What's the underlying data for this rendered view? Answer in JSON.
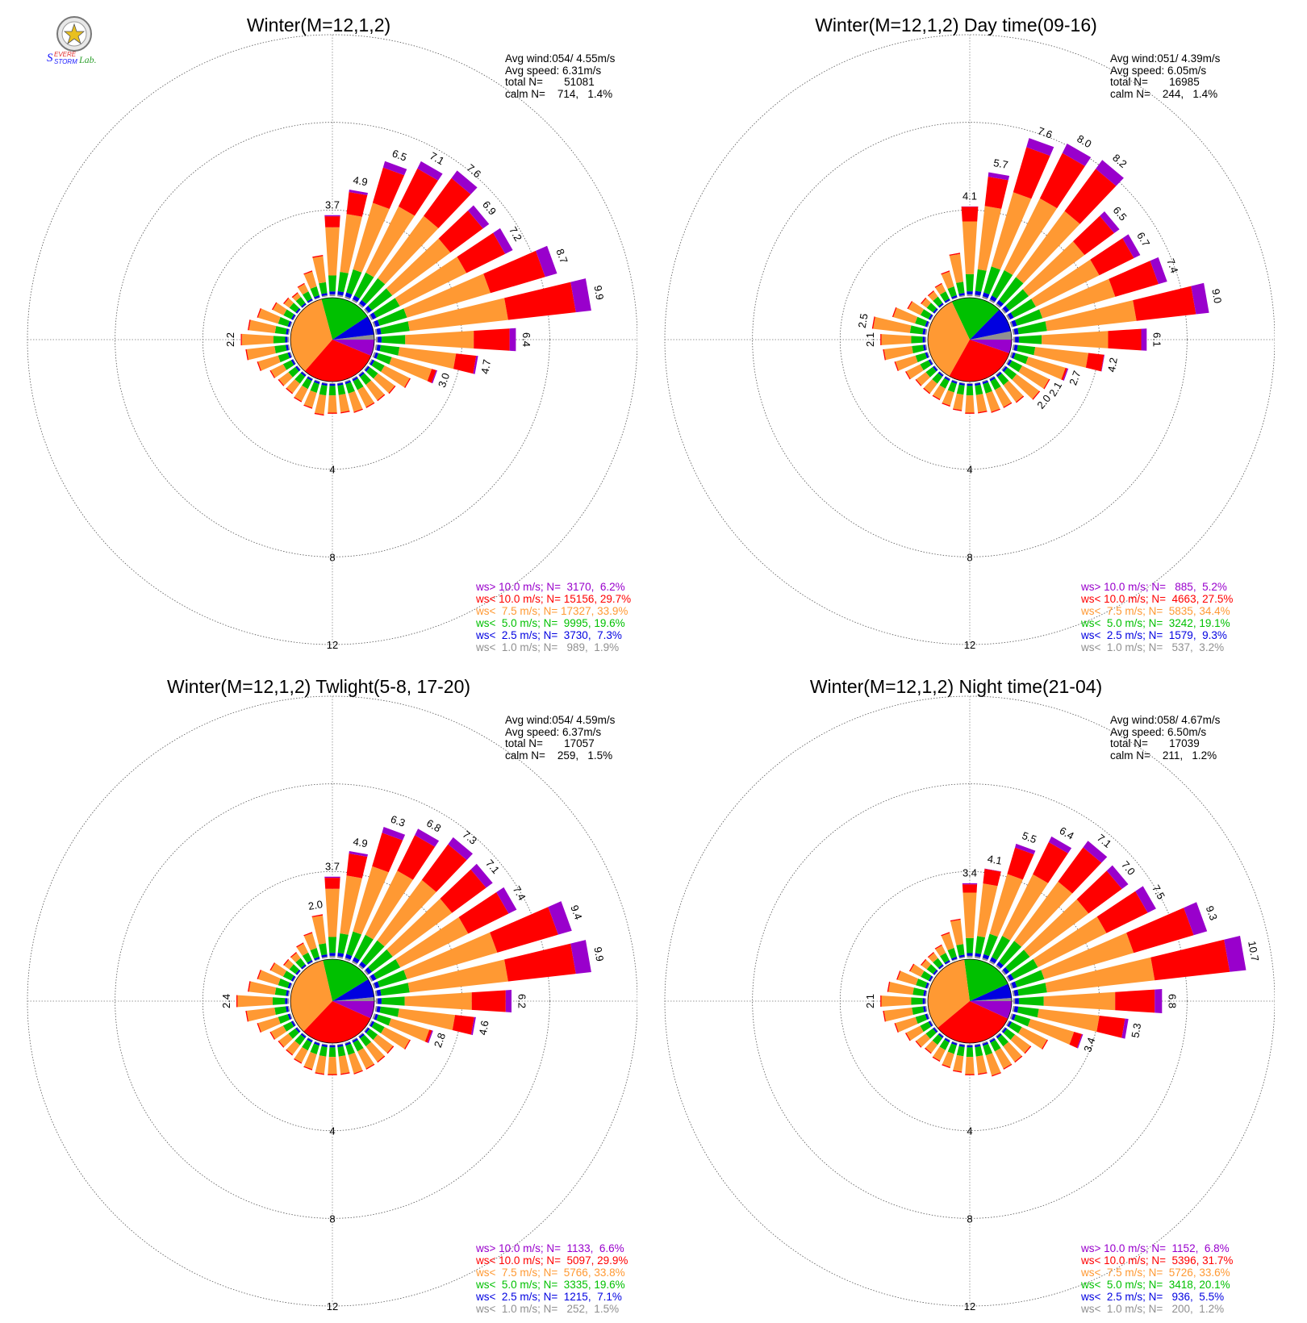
{
  "logo": {
    "text_parts": [
      "S",
      "EVERE",
      "STORM",
      "Lab."
    ],
    "colors": [
      "#1a1aff",
      "#e03030",
      "#1a1aff",
      "#30a030"
    ]
  },
  "speed_classes": [
    {
      "label": "ws<  1.0 m/s",
      "color": "#909090"
    },
    {
      "label": "ws<  2.5 m/s",
      "color": "#0000e0"
    },
    {
      "label": "ws<  5.0 m/s",
      "color": "#00c000"
    },
    {
      "label": "ws<  7.5 m/s",
      "color": "#ff9933"
    },
    {
      "label": "ws< 10.0 m/s",
      "color": "#ff0000"
    },
    {
      "label": "ws> 10.0 m/s",
      "color": "#9900cc"
    }
  ],
  "chart_data": [
    {
      "type": "wind-rose",
      "title": "Winter(M=12,1,2)",
      "stats": [
        "Avg wind:054/ 4.55m/s",
        "Avg speed: 6.31m/s",
        "total N=       51081",
        "calm N=    714,   1.4%"
      ],
      "radial_ticks": [
        "4",
        "8",
        "12"
      ],
      "radial_max": 12,
      "sector_count": 36,
      "directions_deg": [
        0,
        10,
        20,
        30,
        40,
        50,
        60,
        70,
        80,
        90,
        100,
        110,
        120,
        130,
        140,
        150,
        160,
        170,
        180,
        190,
        200,
        210,
        220,
        230,
        240,
        250,
        260,
        270,
        280,
        290,
        300,
        310,
        320,
        330,
        340,
        350
      ],
      "totals": [
        3.7,
        4.9,
        6.5,
        7.1,
        7.6,
        6.9,
        7.2,
        8.7,
        9.9,
        6.4,
        4.7,
        3.0,
        2.0,
        1.6,
        1.5,
        1.5,
        1.5,
        1.4,
        1.4,
        1.5,
        1.3,
        1.2,
        1.1,
        1.1,
        1.2,
        1.6,
        2.0,
        2.2,
        1.9,
        1.6,
        1.1,
        0.8,
        0.7,
        0.9,
        1.3,
        1.9
      ],
      "labeled_totals": [
        {
          "dir": 0,
          "label": "3.7"
        },
        {
          "dir": 10,
          "label": "4.9"
        },
        {
          "dir": 20,
          "label": "6.5"
        },
        {
          "dir": 30,
          "label": "7.1"
        },
        {
          "dir": 40,
          "label": "7.6"
        },
        {
          "dir": 50,
          "label": "6.9"
        },
        {
          "dir": 60,
          "label": "7.2"
        },
        {
          "dir": 70,
          "label": "8.7"
        },
        {
          "dir": 80,
          "label": "9.9"
        },
        {
          "dir": 90,
          "label": "6.4"
        },
        {
          "dir": 100,
          "label": "4.7"
        },
        {
          "dir": 110,
          "label": "3.0"
        },
        {
          "dir": 270,
          "label": "2.2"
        }
      ],
      "legend": [
        {
          "text": "ws> 10.0 m/s; N=  3170,  6.2%",
          "color": "#9900cc",
          "N": 3170,
          "pct": 6.2
        },
        {
          "text": "ws< 10.0 m/s; N= 15156, 29.7%",
          "color": "#ff0000",
          "N": 15156,
          "pct": 29.7
        },
        {
          "text": "ws<  7.5 m/s; N= 17327, 33.9%",
          "color": "#ff9933",
          "N": 17327,
          "pct": 33.9
        },
        {
          "text": "ws<  5.0 m/s; N=  9995, 19.6%",
          "color": "#00c000",
          "N": 9995,
          "pct": 19.6
        },
        {
          "text": "ws<  2.5 m/s; N=  3730,  7.3%",
          "color": "#0000e0",
          "N": 3730,
          "pct": 7.3
        },
        {
          "text": "ws<  1.0 m/s; N=   989,  1.9%",
          "color": "#909090",
          "N": 989,
          "pct": 1.9
        }
      ]
    },
    {
      "type": "wind-rose",
      "title": "Winter(M=12,1,2) Day time(09-16)",
      "stats": [
        "Avg wind:051/ 4.39m/s",
        "Avg speed: 6.05m/s",
        "total N=       16985",
        "calm N=    244,   1.4%"
      ],
      "radial_ticks": [
        "4",
        "8",
        "12"
      ],
      "radial_max": 12,
      "sector_count": 36,
      "directions_deg": [
        0,
        10,
        20,
        30,
        40,
        50,
        60,
        70,
        80,
        90,
        100,
        110,
        120,
        130,
        140,
        150,
        160,
        170,
        180,
        190,
        200,
        210,
        220,
        230,
        240,
        250,
        260,
        270,
        280,
        290,
        300,
        310,
        320,
        330,
        340,
        350
      ],
      "totals": [
        4.1,
        5.7,
        7.6,
        8.0,
        8.2,
        6.5,
        6.7,
        7.4,
        9.0,
        6.1,
        4.2,
        2.7,
        2.1,
        2.0,
        1.6,
        1.5,
        1.5,
        1.4,
        1.4,
        1.3,
        1.2,
        1.1,
        1.1,
        1.1,
        1.3,
        1.6,
        2.0,
        2.1,
        2.5,
        1.7,
        1.2,
        0.8,
        0.8,
        0.9,
        1.3,
        2.0
      ],
      "labeled_totals": [
        {
          "dir": 0,
          "label": "4.1"
        },
        {
          "dir": 10,
          "label": "5.7"
        },
        {
          "dir": 20,
          "label": "7.6"
        },
        {
          "dir": 30,
          "label": "8.0"
        },
        {
          "dir": 40,
          "label": "8.2"
        },
        {
          "dir": 50,
          "label": "6.5"
        },
        {
          "dir": 60,
          "label": "6.7"
        },
        {
          "dir": 70,
          "label": "7.4"
        },
        {
          "dir": 80,
          "label": "9.0"
        },
        {
          "dir": 90,
          "label": "6.1"
        },
        {
          "dir": 100,
          "label": "4.2"
        },
        {
          "dir": 110,
          "label": "2.7"
        },
        {
          "dir": 120,
          "label": "2.1"
        },
        {
          "dir": 130,
          "label": "2.0"
        },
        {
          "dir": 270,
          "label": "2.1"
        },
        {
          "dir": 280,
          "label": "2.5"
        }
      ],
      "legend": [
        {
          "text": "ws> 10.0 m/s; N=   885,  5.2%",
          "color": "#9900cc",
          "N": 885,
          "pct": 5.2
        },
        {
          "text": "ws< 10.0 m/s; N=  4663, 27.5%",
          "color": "#ff0000",
          "N": 4663,
          "pct": 27.5
        },
        {
          "text": "ws<  7.5 m/s; N=  5835, 34.4%",
          "color": "#ff9933",
          "N": 5835,
          "pct": 34.4
        },
        {
          "text": "ws<  5.0 m/s; N=  3242, 19.1%",
          "color": "#00c000",
          "N": 3242,
          "pct": 19.1
        },
        {
          "text": "ws<  2.5 m/s; N=  1579,  9.3%",
          "color": "#0000e0",
          "N": 1579,
          "pct": 9.3
        },
        {
          "text": "ws<  1.0 m/s; N=   537,  3.2%",
          "color": "#909090",
          "N": 537,
          "pct": 3.2
        }
      ]
    },
    {
      "type": "wind-rose",
      "title": "Winter(M=12,1,2) Twlight(5-8, 17-20)",
      "stats": [
        "Avg wind:054/ 4.59m/s",
        "Avg speed: 6.37m/s",
        "total N=       17057",
        "calm N=    259,   1.5%"
      ],
      "radial_ticks": [
        "4",
        "8",
        "12"
      ],
      "radial_max": 12,
      "sector_count": 36,
      "directions_deg": [
        0,
        10,
        20,
        30,
        40,
        50,
        60,
        70,
        80,
        90,
        100,
        110,
        120,
        130,
        140,
        150,
        160,
        170,
        180,
        190,
        200,
        210,
        220,
        230,
        240,
        250,
        260,
        270,
        280,
        290,
        300,
        310,
        320,
        330,
        340,
        350
      ],
      "totals": [
        3.7,
        4.9,
        6.3,
        6.8,
        7.3,
        7.1,
        7.4,
        9.4,
        9.9,
        6.2,
        4.6,
        2.8,
        2.0,
        1.5,
        1.5,
        1.5,
        1.5,
        1.4,
        1.4,
        1.4,
        1.3,
        1.2,
        1.1,
        1.1,
        1.2,
        1.6,
        2.0,
        2.4,
        1.9,
        1.6,
        1.2,
        0.8,
        0.8,
        1.0,
        1.3,
        2.0
      ],
      "labeled_totals": [
        {
          "dir": 0,
          "label": "3.7"
        },
        {
          "dir": 10,
          "label": "4.9"
        },
        {
          "dir": 20,
          "label": "6.3"
        },
        {
          "dir": 30,
          "label": "6.8"
        },
        {
          "dir": 40,
          "label": "7.3"
        },
        {
          "dir": 50,
          "label": "7.1"
        },
        {
          "dir": 60,
          "label": "7.4"
        },
        {
          "dir": 70,
          "label": "9.4"
        },
        {
          "dir": 80,
          "label": "9.9"
        },
        {
          "dir": 90,
          "label": "6.2"
        },
        {
          "dir": 100,
          "label": "4.6"
        },
        {
          "dir": 110,
          "label": "2.8"
        },
        {
          "dir": 270,
          "label": "2.4"
        },
        {
          "dir": 350,
          "label": "2.0"
        }
      ],
      "legend": [
        {
          "text": "ws> 10.0 m/s; N=  1133,  6.6%",
          "color": "#9900cc",
          "N": 1133,
          "pct": 6.6
        },
        {
          "text": "ws< 10.0 m/s; N=  5097, 29.9%",
          "color": "#ff0000",
          "N": 5097,
          "pct": 29.9
        },
        {
          "text": "ws<  7.5 m/s; N=  5766, 33.8%",
          "color": "#ff9933",
          "N": 5766,
          "pct": 33.8
        },
        {
          "text": "ws<  5.0 m/s; N=  3335, 19.6%",
          "color": "#00c000",
          "N": 3335,
          "pct": 19.6
        },
        {
          "text": "ws<  2.5 m/s; N=  1215,  7.1%",
          "color": "#0000e0",
          "N": 1215,
          "pct": 7.1
        },
        {
          "text": "ws<  1.0 m/s; N=   252,  1.5%",
          "color": "#909090",
          "N": 252,
          "pct": 1.5
        }
      ]
    },
    {
      "type": "wind-rose",
      "title": "Winter(M=12,1,2) Night time(21-04)",
      "stats": [
        "Avg wind:058/ 4.67m/s",
        "Avg speed: 6.50m/s",
        "total N=       17039",
        "calm N=    211,   1.2%"
      ],
      "radial_ticks": [
        "4",
        "8",
        "12"
      ],
      "radial_max": 12,
      "sector_count": 36,
      "directions_deg": [
        0,
        10,
        20,
        30,
        40,
        50,
        60,
        70,
        80,
        90,
        100,
        110,
        120,
        130,
        140,
        150,
        160,
        170,
        180,
        190,
        200,
        210,
        220,
        230,
        240,
        250,
        260,
        270,
        280,
        290,
        300,
        310,
        320,
        330,
        340,
        350
      ],
      "totals": [
        3.4,
        4.1,
        5.5,
        6.4,
        7.1,
        7.0,
        7.5,
        9.3,
        10.7,
        6.8,
        5.3,
        3.4,
        2.0,
        1.5,
        1.5,
        1.5,
        1.6,
        1.4,
        1.4,
        1.3,
        1.2,
        1.1,
        1.0,
        1.1,
        1.3,
        1.6,
        2.0,
        2.1,
        1.8,
        1.5,
        1.1,
        0.8,
        0.8,
        0.9,
        1.3,
        1.8
      ],
      "labeled_totals": [
        {
          "dir": 0,
          "label": "3.4"
        },
        {
          "dir": 10,
          "label": "4.1"
        },
        {
          "dir": 20,
          "label": "5.5"
        },
        {
          "dir": 30,
          "label": "6.4"
        },
        {
          "dir": 40,
          "label": "7.1"
        },
        {
          "dir": 50,
          "label": "7.0"
        },
        {
          "dir": 60,
          "label": "7.5"
        },
        {
          "dir": 70,
          "label": "9.3"
        },
        {
          "dir": 80,
          "label": "10.7"
        },
        {
          "dir": 90,
          "label": "6.8"
        },
        {
          "dir": 100,
          "label": "5.3"
        },
        {
          "dir": 110,
          "label": "3.4"
        },
        {
          "dir": 270,
          "label": "2.1"
        }
      ],
      "legend": [
        {
          "text": "ws> 10.0 m/s; N=  1152,  6.8%",
          "color": "#9900cc",
          "N": 1152,
          "pct": 6.8
        },
        {
          "text": "ws< 10.0 m/s; N=  5396, 31.7%",
          "color": "#ff0000",
          "N": 5396,
          "pct": 31.7
        },
        {
          "text": "ws<  7.5 m/s; N=  5726, 33.6%",
          "color": "#ff9933",
          "N": 5726,
          "pct": 33.6
        },
        {
          "text": "ws<  5.0 m/s; N=  3418, 20.1%",
          "color": "#00c000",
          "N": 3418,
          "pct": 20.1
        },
        {
          "text": "ws<  2.5 m/s; N=   936,  5.5%",
          "color": "#0000e0",
          "N": 936,
          "pct": 5.5
        },
        {
          "text": "ws<  1.0 m/s; N=   200,  1.2%",
          "color": "#909090",
          "N": 200,
          "pct": 1.2
        }
      ]
    }
  ]
}
